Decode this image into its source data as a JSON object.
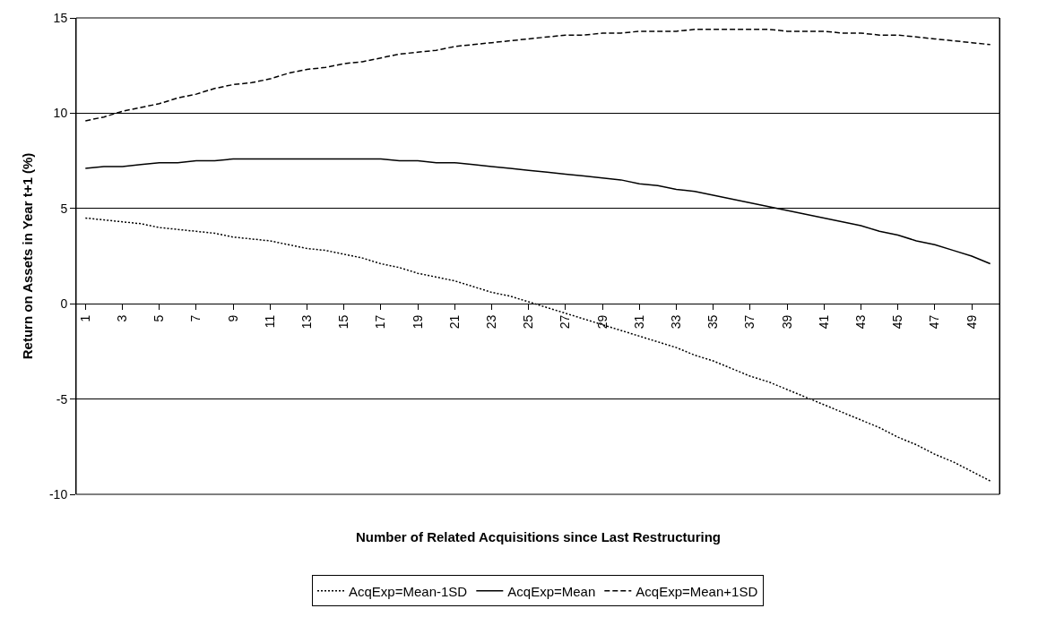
{
  "chart_data": {
    "type": "line",
    "xlabel": "Number of Related Acquisitions since Last Restructuring",
    "ylabel": "Return on Assets in Year t+1 (%)",
    "categories": [
      "1",
      null,
      "3",
      null,
      "5",
      null,
      "7",
      null,
      "9",
      null,
      "11",
      null,
      "13",
      null,
      "15",
      null,
      "17",
      null,
      "19",
      null,
      "21",
      null,
      "23",
      null,
      "25",
      null,
      "27",
      null,
      "29",
      null,
      "31",
      null,
      "33",
      null,
      "35",
      null,
      "37",
      null,
      "39",
      null,
      "41",
      null,
      "43",
      null,
      "45",
      null,
      "47",
      null,
      "49",
      null
    ],
    "series": [
      {
        "name": "AcqExp=Mean-1SD",
        "color": "#000000",
        "line_style": "dotted",
        "values": [
          4.5,
          4.4,
          4.3,
          4.2,
          4.0,
          3.9,
          3.8,
          3.7,
          3.5,
          3.4,
          3.3,
          3.1,
          2.9,
          2.8,
          2.6,
          2.4,
          2.1,
          1.9,
          1.6,
          1.4,
          1.2,
          0.9,
          0.6,
          0.4,
          0.1,
          -0.2,
          -0.5,
          -0.8,
          -1.1,
          -1.4,
          -1.7,
          -2.0,
          -2.3,
          -2.7,
          -3.0,
          -3.4,
          -3.8,
          -4.1,
          -4.5,
          -4.9,
          -5.3,
          -5.7,
          -6.1,
          -6.5,
          -7.0,
          -7.4,
          -7.9,
          -8.3,
          -8.8,
          -9.3
        ]
      },
      {
        "name": "AcqExp=Mean",
        "color": "#000000",
        "line_style": "solid",
        "values": [
          7.1,
          7.2,
          7.2,
          7.3,
          7.4,
          7.4,
          7.5,
          7.5,
          7.6,
          7.6,
          7.6,
          7.6,
          7.6,
          7.6,
          7.6,
          7.6,
          7.6,
          7.5,
          7.5,
          7.4,
          7.4,
          7.3,
          7.2,
          7.1,
          7.0,
          6.9,
          6.8,
          6.7,
          6.6,
          6.5,
          6.3,
          6.2,
          6.0,
          5.9,
          5.7,
          5.5,
          5.3,
          5.1,
          4.9,
          4.7,
          4.5,
          4.3,
          4.1,
          3.8,
          3.6,
          3.3,
          3.1,
          2.8,
          2.5,
          2.1
        ]
      },
      {
        "name": "AcqExp=Mean+1SD",
        "color": "#000000",
        "line_style": "dashed",
        "values": [
          9.6,
          9.8,
          10.1,
          10.3,
          10.5,
          10.8,
          11.0,
          11.3,
          11.5,
          11.6,
          11.8,
          12.1,
          12.3,
          12.4,
          12.6,
          12.7,
          12.9,
          13.1,
          13.2,
          13.3,
          13.5,
          13.6,
          13.7,
          13.8,
          13.9,
          14.0,
          14.1,
          14.1,
          14.2,
          14.2,
          14.3,
          14.3,
          14.3,
          14.4,
          14.4,
          14.4,
          14.4,
          14.4,
          14.3,
          14.3,
          14.3,
          14.2,
          14.2,
          14.1,
          14.1,
          14.0,
          13.9,
          13.8,
          13.7,
          13.6
        ]
      }
    ],
    "ylim": [
      -10,
      15
    ],
    "yticks": [
      -10,
      -5,
      0,
      5,
      10,
      15
    ],
    "grid": "y",
    "legend": "bottom",
    "marker": "none"
  }
}
